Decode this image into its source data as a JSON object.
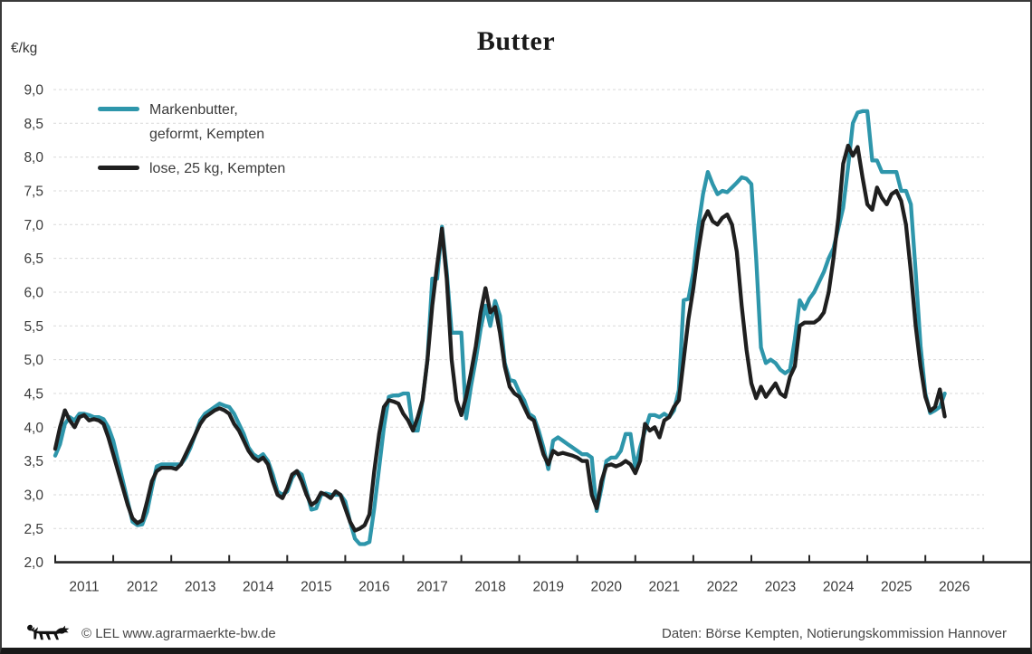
{
  "chart": {
    "title": "Butter",
    "unit_label": "€/kg",
    "legend": {
      "entries": [
        {
          "line1": "Markenbutter,",
          "line2": "geformt, Kempten",
          "color": "#2E96AB"
        },
        {
          "line1": "lose, 25 kg, Kempten",
          "line2": "",
          "color": "#1F1F1F"
        }
      ]
    }
  },
  "footer": {
    "copyright": "© LEL www.agrarmaerkte-bw.de",
    "source": "Daten: Börse Kempten, Notierungskommission Hannover"
  },
  "chart_data": {
    "type": "line",
    "title": "Butter",
    "ylabel": "€/kg",
    "xlabel": "",
    "grid": "horizontal-dashed",
    "legend_position": "top-left-inside",
    "y_axis": {
      "min": 2.0,
      "max": 9.0,
      "step": 0.5,
      "decimal_separator": ","
    },
    "x_axis": {
      "year_labels": [
        "2011",
        "2012",
        "2013",
        "2014",
        "2015",
        "2016",
        "2017",
        "2018",
        "2019",
        "2020",
        "2021",
        "2022",
        "2023",
        "2024",
        "2025",
        "2026"
      ]
    },
    "start": {
      "year": 2011,
      "month": 1
    },
    "frequency": "monthly",
    "series": [
      {
        "name": "Markenbutter, geformt, Kempten",
        "color": "#2E96AB",
        "values": [
          3.58,
          3.75,
          4.05,
          4.15,
          4.1,
          4.2,
          4.2,
          4.18,
          4.15,
          4.15,
          4.12,
          4.0,
          3.8,
          3.5,
          3.2,
          2.9,
          2.6,
          2.55,
          2.56,
          2.75,
          3.1,
          3.42,
          3.45,
          3.45,
          3.45,
          3.45,
          3.45,
          3.55,
          3.7,
          3.9,
          4.1,
          4.2,
          4.25,
          4.3,
          4.35,
          4.32,
          4.3,
          4.2,
          4.05,
          3.9,
          3.7,
          3.6,
          3.55,
          3.6,
          3.5,
          3.3,
          3.05,
          3.0,
          3.05,
          3.25,
          3.35,
          3.3,
          3.05,
          2.78,
          2.8,
          3.0,
          3.02,
          3.0,
          3.0,
          3.0,
          2.9,
          2.6,
          2.35,
          2.27,
          2.27,
          2.3,
          2.8,
          3.4,
          4.0,
          4.45,
          4.47,
          4.47,
          4.5,
          4.5,
          3.95,
          3.95,
          4.4,
          5.0,
          6.2,
          6.2,
          6.97,
          6.3,
          5.4,
          5.4,
          5.4,
          4.13,
          4.6,
          5.0,
          5.45,
          5.8,
          5.5,
          5.87,
          5.65,
          4.95,
          4.7,
          4.68,
          4.52,
          4.4,
          4.2,
          4.15,
          3.95,
          3.7,
          3.38,
          3.8,
          3.85,
          3.8,
          3.75,
          3.7,
          3.65,
          3.6,
          3.6,
          3.55,
          2.76,
          3.1,
          3.5,
          3.55,
          3.55,
          3.65,
          3.9,
          3.9,
          3.4,
          3.7,
          3.95,
          4.18,
          4.18,
          4.15,
          4.2,
          4.15,
          4.25,
          4.55,
          5.88,
          5.9,
          6.3,
          6.95,
          7.45,
          7.78,
          7.6,
          7.45,
          7.5,
          7.48,
          7.55,
          7.62,
          7.7,
          7.68,
          7.6,
          6.5,
          5.18,
          4.95,
          5.0,
          4.95,
          4.85,
          4.8,
          4.85,
          5.3,
          5.88,
          5.75,
          5.9,
          6.0,
          6.15,
          6.3,
          6.5,
          6.65,
          6.95,
          7.25,
          7.85,
          8.5,
          8.66,
          8.68,
          8.68,
          7.95,
          7.95,
          7.78,
          7.78,
          7.78,
          7.78,
          7.5,
          7.5,
          7.3,
          6.3,
          5.2,
          4.5,
          4.21,
          4.25,
          4.3,
          4.5
        ]
      },
      {
        "name": "lose, 25 kg, Kempten",
        "color": "#1F1F1F",
        "values": [
          3.68,
          4.0,
          4.25,
          4.1,
          4.0,
          4.15,
          4.18,
          4.1,
          4.12,
          4.1,
          4.05,
          3.85,
          3.6,
          3.35,
          3.1,
          2.85,
          2.65,
          2.58,
          2.62,
          2.9,
          3.2,
          3.35,
          3.4,
          3.4,
          3.4,
          3.38,
          3.45,
          3.6,
          3.75,
          3.9,
          4.05,
          4.15,
          4.2,
          4.25,
          4.28,
          4.25,
          4.2,
          4.05,
          3.95,
          3.8,
          3.65,
          3.55,
          3.5,
          3.55,
          3.45,
          3.2,
          3.0,
          2.95,
          3.1,
          3.3,
          3.35,
          3.2,
          3.0,
          2.85,
          2.9,
          3.03,
          3.0,
          2.95,
          3.05,
          3.0,
          2.8,
          2.6,
          2.47,
          2.5,
          2.55,
          2.71,
          3.35,
          3.9,
          4.3,
          4.4,
          4.38,
          4.35,
          4.2,
          4.1,
          3.95,
          4.15,
          4.4,
          5.0,
          5.8,
          6.4,
          6.94,
          6.2,
          5.0,
          4.4,
          4.18,
          4.45,
          4.8,
          5.2,
          5.7,
          6.06,
          5.7,
          5.78,
          5.4,
          4.9,
          4.6,
          4.5,
          4.45,
          4.3,
          4.15,
          4.1,
          3.85,
          3.6,
          3.45,
          3.65,
          3.6,
          3.62,
          3.6,
          3.58,
          3.55,
          3.5,
          3.5,
          3.0,
          2.8,
          3.2,
          3.43,
          3.45,
          3.42,
          3.45,
          3.5,
          3.45,
          3.32,
          3.5,
          4.05,
          3.95,
          4.0,
          3.85,
          4.1,
          4.15,
          4.3,
          4.4,
          5.0,
          5.6,
          6.06,
          6.6,
          7.05,
          7.2,
          7.05,
          7.0,
          7.1,
          7.15,
          7.0,
          6.6,
          5.8,
          5.15,
          4.65,
          4.43,
          4.6,
          4.45,
          4.55,
          4.65,
          4.5,
          4.45,
          4.75,
          4.9,
          5.5,
          5.55,
          5.55,
          5.55,
          5.6,
          5.7,
          6.0,
          6.5,
          7.1,
          7.9,
          8.17,
          8.02,
          8.15,
          7.7,
          7.3,
          7.22,
          7.55,
          7.4,
          7.3,
          7.45,
          7.5,
          7.35,
          7.0,
          6.3,
          5.5,
          4.9,
          4.45,
          4.24,
          4.3,
          4.56,
          4.16
        ]
      }
    ]
  }
}
